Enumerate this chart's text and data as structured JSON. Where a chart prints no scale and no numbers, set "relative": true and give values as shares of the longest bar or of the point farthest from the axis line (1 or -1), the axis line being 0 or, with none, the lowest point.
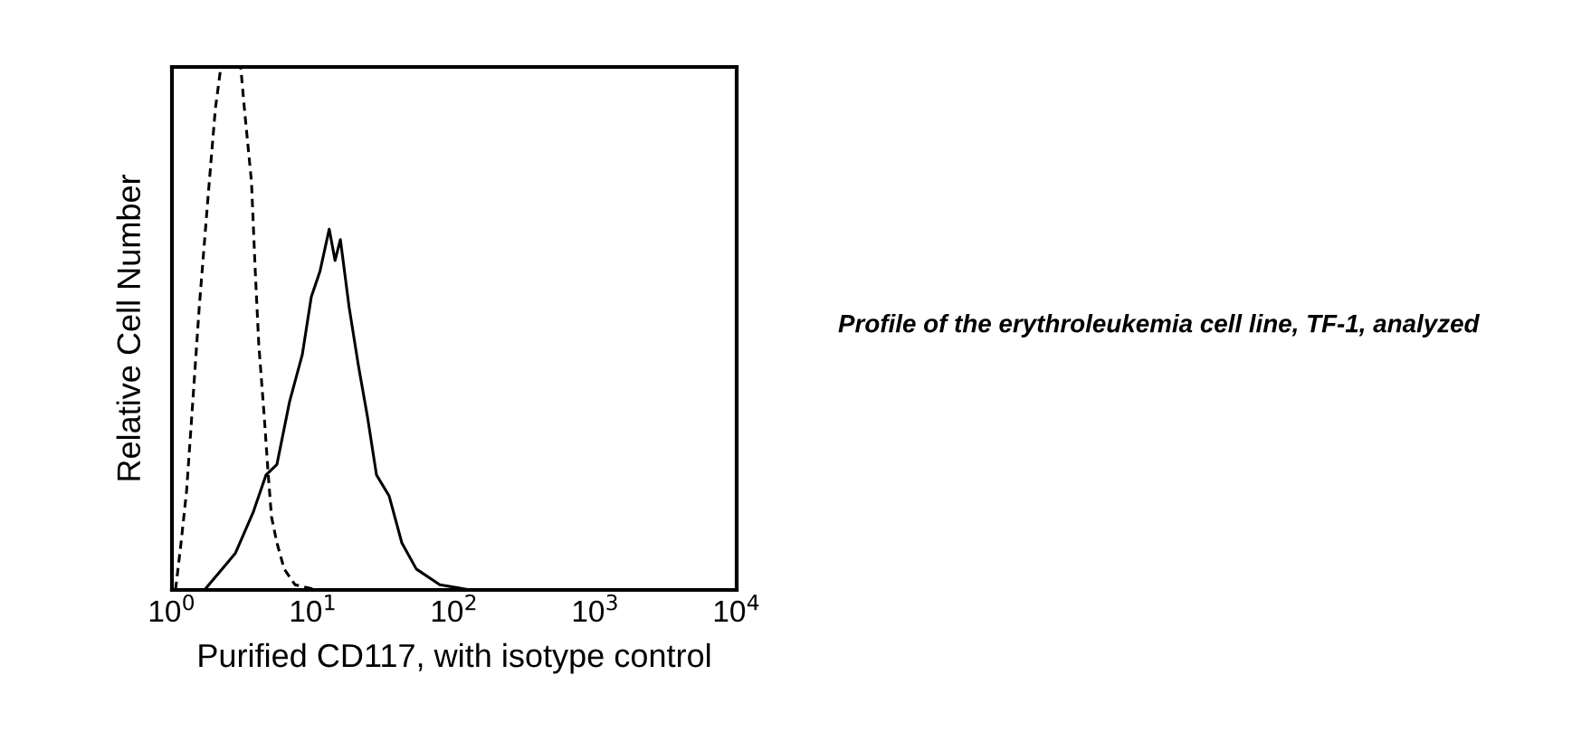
{
  "chart_data": {
    "type": "line",
    "relative": true,
    "log": "x",
    "xlabel": "Purified CD117, with isotype control",
    "ylabel": "Relative Cell Number",
    "xlim": [
      1,
      10000
    ],
    "xticks": [
      {
        "value": 1,
        "label": "10$^{0}$"
      },
      {
        "value": 10,
        "label": "10$^{1}$"
      },
      {
        "value": 100,
        "label": "10$^{2}$"
      },
      {
        "value": 1000,
        "label": "10$^{3}$"
      },
      {
        "value": 10000,
        "label": "10$^{4}$"
      }
    ],
    "tick_labels": "x",
    "series": [
      {
        "color": "#000000",
        "line_style": "dashed",
        "x": [
          1.06,
          1.16,
          1.27,
          1.38,
          1.56,
          1.8,
          2.03,
          2.22,
          3.07,
          3.26,
          3.66,
          3.89,
          4.12,
          4.51,
          4.78,
          5.07,
          5.54,
          6.24,
          7.44,
          10.6
        ],
        "values": [
          0,
          0.09,
          0.19,
          0.33,
          0.54,
          0.75,
          0.92,
          1,
          1,
          0.92,
          0.78,
          0.61,
          0.47,
          0.33,
          0.23,
          0.14,
          0.09,
          0.04,
          0.01,
          0
        ]
      },
      {
        "color": "#000000",
        "line_style": "solid",
        "x": [
          1.7,
          2.81,
          3.78,
          4.64,
          5.54,
          6.81,
          8.38,
          9.7,
          11.2,
          13.0,
          14.3,
          15.6,
          18.0,
          20.9,
          24.3,
          28.1,
          34.5,
          42.5,
          53.8,
          78.9,
          130,
          316
        ],
        "values": [
          0,
          0.07,
          0.15,
          0.22,
          0.24,
          0.36,
          0.45,
          0.56,
          0.61,
          0.69,
          0.63,
          0.67,
          0.54,
          0.43,
          0.33,
          0.22,
          0.18,
          0.09,
          0.04,
          0.01,
          0,
          0
        ]
      }
    ],
    "annotations": [
      "Profile of the erythroleukemia cell line, TF-1, analyzed"
    ]
  }
}
